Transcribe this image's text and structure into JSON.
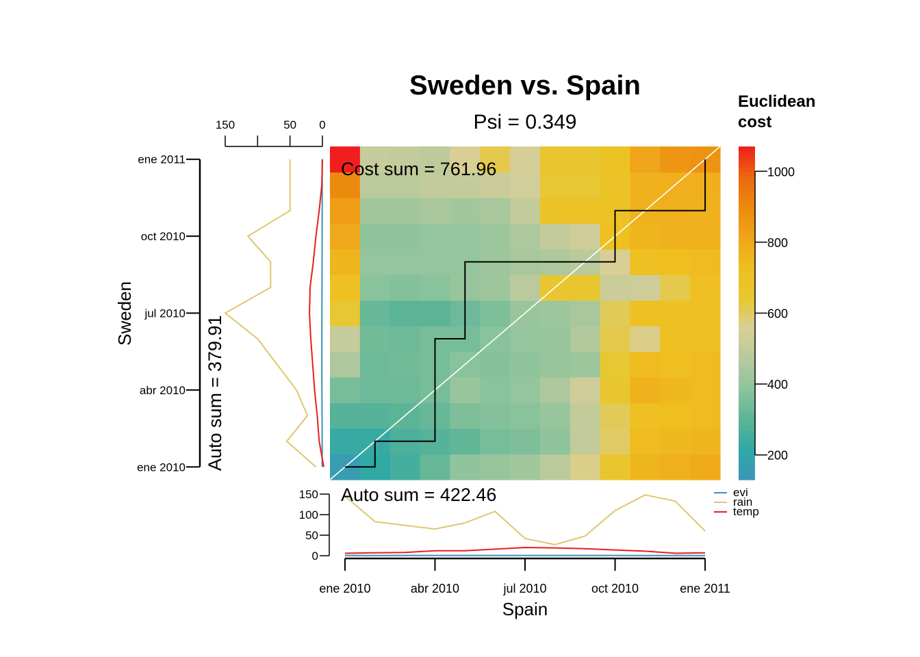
{
  "chart_data": {
    "type": "heatmap",
    "title": "Sweden vs. Spain",
    "subtitle": "Psi = 0.349",
    "xlabel": "Spain",
    "ylabel": "Sweden",
    "x_ticks": [
      "ene 2010",
      "abr 2010",
      "jul 2010",
      "oct 2010",
      "ene 2011"
    ],
    "y_ticks": [
      "ene 2010",
      "abr 2010",
      "jul 2010",
      "oct 2010",
      "ene 2011"
    ],
    "cost_sum_label": "Cost sum =  761.96",
    "x_auto_sum_label": "Auto sum =  422.46",
    "y_auto_sum_label": "Auto sum =  379.91",
    "colorbar": {
      "title": [
        "Euclidean",
        "cost"
      ],
      "ticks": [
        200,
        400,
        600,
        800,
        1000
      ],
      "range": [
        130,
        1070
      ],
      "colors": [
        "#3d96b8",
        "#2fa8a6",
        "#5cb497",
        "#8dc49c",
        "#b8c99d",
        "#d8cf98",
        "#e8c731",
        "#efbf1f",
        "#f0a41a",
        "#ec8a0e",
        "#ea6a0e",
        "#f01e1c"
      ]
    },
    "cost_matrix": [
      [
        160,
        220,
        260,
        320,
        390,
        410,
        430,
        480,
        570,
        650,
        760,
        780,
        790
      ],
      [
        230,
        230,
        270,
        290,
        310,
        350,
        360,
        390,
        500,
        600,
        740,
        750,
        760
      ],
      [
        290,
        290,
        300,
        320,
        360,
        370,
        380,
        410,
        500,
        610,
        720,
        730,
        740
      ],
      [
        350,
        330,
        330,
        350,
        410,
        380,
        400,
        450,
        530,
        650,
        770,
        750,
        740
      ],
      [
        450,
        330,
        340,
        350,
        380,
        370,
        390,
        410,
        420,
        640,
        740,
        730,
        740
      ],
      [
        510,
        340,
        330,
        350,
        350,
        380,
        400,
        410,
        460,
        620,
        570,
        710,
        720
      ],
      [
        640,
        320,
        300,
        300,
        330,
        360,
        410,
        420,
        440,
        610,
        710,
        720,
        720
      ],
      [
        720,
        380,
        370,
        380,
        410,
        420,
        480,
        650,
        650,
        520,
        530,
        620,
        720
      ],
      [
        760,
        400,
        400,
        400,
        400,
        420,
        440,
        450,
        480,
        560,
        720,
        730,
        740
      ],
      [
        800,
        390,
        390,
        400,
        400,
        420,
        450,
        500,
        530,
        720,
        760,
        770,
        770
      ],
      [
        840,
        430,
        430,
        440,
        430,
        440,
        500,
        690,
        700,
        700,
        770,
        780,
        770
      ],
      [
        900,
        480,
        480,
        500,
        500,
        520,
        540,
        640,
        640,
        690,
        770,
        780,
        780
      ],
      [
        1070,
        510,
        500,
        490,
        560,
        620,
        550,
        650,
        650,
        700,
        810,
        860,
        870
      ]
    ],
    "path": [
      [
        0,
        0
      ],
      [
        1,
        0
      ],
      [
        1,
        1
      ],
      [
        2,
        1
      ],
      [
        3,
        1
      ],
      [
        3,
        2
      ],
      [
        3,
        3
      ],
      [
        3,
        4
      ],
      [
        3,
        5
      ],
      [
        4,
        5
      ],
      [
        4,
        6
      ],
      [
        4,
        7
      ],
      [
        4,
        8
      ],
      [
        5,
        8
      ],
      [
        6,
        8
      ],
      [
        7,
        8
      ],
      [
        8,
        8
      ],
      [
        9,
        8
      ],
      [
        9,
        9
      ],
      [
        9,
        10
      ],
      [
        10,
        10
      ],
      [
        11,
        10
      ],
      [
        12,
        10
      ],
      [
        12,
        11
      ],
      [
        12,
        12
      ]
    ],
    "series": [
      {
        "name": "evi",
        "color": "#3a91b4",
        "x_values": [
          0.5,
          0.5,
          0.6,
          0.6,
          0.7,
          0.7,
          0.7,
          0.7,
          0.6,
          0.6,
          0.5,
          0.5,
          0.5
        ],
        "y_values": [
          0.3,
          0.4,
          0.5,
          0.7,
          0.8,
          0.8,
          0.7,
          0.6,
          0.5,
          0.4,
          0.3,
          0.3,
          0.3
        ]
      },
      {
        "name": "rain",
        "color": "#dfc76e",
        "x_values": [
          145,
          83,
          74,
          65,
          80,
          108,
          42,
          27,
          48,
          110,
          148,
          133,
          60
        ],
        "y_values": [
          10,
          55,
          23,
          40,
          70,
          100,
          150,
          80,
          80,
          115,
          50,
          50,
          50
        ]
      },
      {
        "name": "temp",
        "color": "#ec1c1a",
        "x_values": [
          6,
          7,
          8,
          12,
          12,
          16,
          20,
          19,
          17,
          14,
          11,
          6,
          7
        ],
        "y_values": [
          -2,
          5,
          8,
          12,
          15,
          18,
          20,
          19,
          14,
          10,
          5,
          1,
          0
        ]
      }
    ],
    "x_panel_ylim": [
      0,
      160
    ],
    "x_panel_yticks": [
      0,
      50,
      100,
      150
    ],
    "y_panel_xlim": [
      0,
      160
    ],
    "y_panel_xticks": [
      0,
      50,
      150
    ]
  }
}
